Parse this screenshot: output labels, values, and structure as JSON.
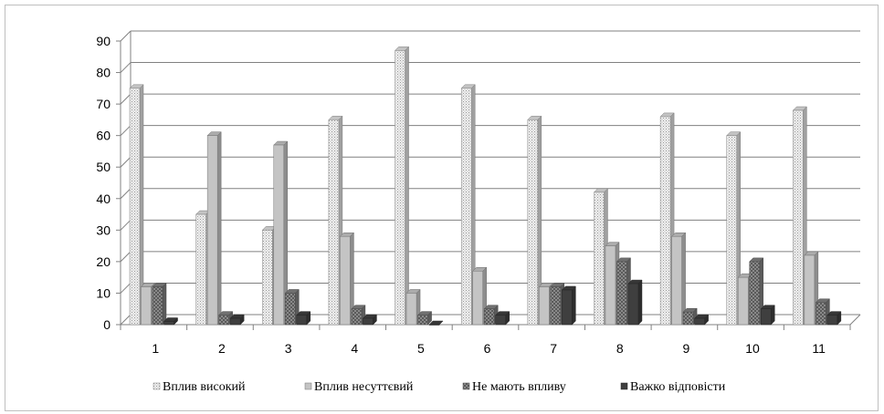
{
  "chart_data": {
    "type": "bar",
    "title": "",
    "xlabel": "",
    "ylabel": "",
    "ylim": [
      0,
      90
    ],
    "yticks": [
      0,
      10,
      20,
      30,
      40,
      50,
      60,
      70,
      80,
      90
    ],
    "categories": [
      "1",
      "2",
      "3",
      "4",
      "5",
      "6",
      "7",
      "8",
      "9",
      "10",
      "11"
    ],
    "grid": true,
    "legend_position": "bottom",
    "series": [
      {
        "name": "Вплив  високий",
        "color": "#dedede",
        "pattern": "dots",
        "values": [
          75,
          35,
          30,
          65,
          87,
          75,
          65,
          42,
          66,
          60,
          68
        ]
      },
      {
        "name": "Вплив несуттєвий",
        "color": "#c4c4c4",
        "pattern": "solid",
        "values": [
          12,
          60,
          57,
          28,
          10,
          17,
          12,
          25,
          28,
          15,
          22
        ]
      },
      {
        "name": "Не мають впливу",
        "color": "#7f7f7f",
        "pattern": "checker",
        "values": [
          12,
          3,
          10,
          5,
          3,
          5,
          12,
          20,
          4,
          20,
          7
        ]
      },
      {
        "name": "Важко відповісти",
        "color": "#3f3f3f",
        "pattern": "solid",
        "values": [
          1,
          2,
          3,
          2,
          0,
          3,
          11,
          13,
          2,
          5,
          3
        ]
      }
    ]
  }
}
